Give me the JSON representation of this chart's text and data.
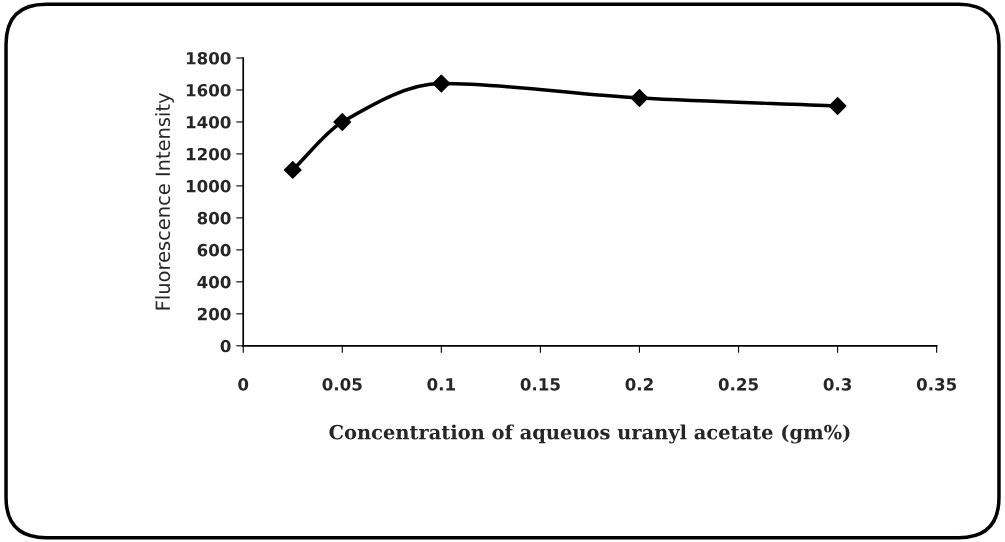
{
  "chart_data": {
    "type": "line",
    "xlabel": "Concentration of aqueuos uranyl acetate (gm%)",
    "ylabel": "Fluorescence Intensity",
    "x": [
      0.025,
      0.05,
      0.1,
      0.2,
      0.3
    ],
    "series": [
      {
        "color": "#000000",
        "values": [
          1100,
          1400,
          1640,
          1550,
          1500
        ]
      }
    ],
    "xlim": [
      0,
      0.35
    ],
    "xticks": [
      0,
      0.05,
      0.1,
      0.15,
      0.2,
      0.25,
      0.3,
      0.35
    ],
    "ylim": [
      0,
      1800
    ],
    "yticks": [
      0,
      200,
      400,
      600,
      800,
      1000,
      1200,
      1400,
      1600,
      1800
    ],
    "marker": "diamond",
    "line_style": "solid",
    "grid": false,
    "legend": false
  }
}
